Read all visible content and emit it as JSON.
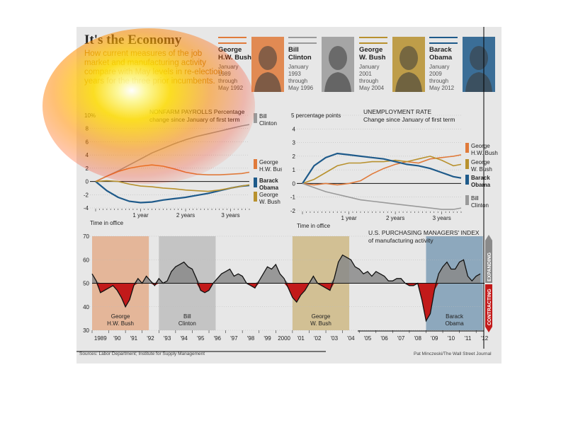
{
  "title": "It's the Economy",
  "subtitle": "How current measures of the job market and manufacturing activity compare with May levels in re-election years for the three prior incumbents.",
  "presidents": [
    {
      "name_line1": "George",
      "name_line2": "H.W. Bush",
      "period": [
        "January",
        "1989",
        "through",
        "May 1992"
      ],
      "color": "#e07a3a"
    },
    {
      "name_line1": "Bill",
      "name_line2": "Clinton",
      "period": [
        "January",
        "1993",
        "through",
        "May 1996"
      ],
      "color": "#9a9a9a"
    },
    {
      "name_line1": "George",
      "name_line2": "W. Bush",
      "period": [
        "January",
        "2001",
        "through",
        "May 2004"
      ],
      "color": "#b8912e"
    },
    {
      "name_line1": "Barack",
      "name_line2": "Obama",
      "period": [
        "January",
        "2009",
        "through",
        "May 2012"
      ],
      "color": "#1e5a8a"
    }
  ],
  "footer": {
    "source": "Sources: Labor Department; Institute for Supply Management",
    "credit": "Pat Minczeski/The Wall Street Journal"
  },
  "colors": {
    "hwbush": "#e07a3a",
    "clinton": "#9a9a9a",
    "wbush": "#b8912e",
    "obama": "#1e5a8a",
    "above50": "#8a8a8a",
    "below50": "#c21a1a"
  },
  "chart_data": [
    {
      "type": "line",
      "title": "NONFARM PAYROLLS Percentage change since January of first term",
      "y_unit_label": "10%",
      "xlabel": "Time in office",
      "x_tick_labels": [
        "1 year",
        "2 years",
        "3 years"
      ],
      "ylim": [
        -4,
        10
      ],
      "yticks": [
        -4,
        -2,
        0,
        2,
        4,
        6,
        8,
        10
      ],
      "x": [
        0,
        3,
        6,
        9,
        12,
        15,
        18,
        21,
        24,
        27,
        30,
        33,
        36,
        39,
        41
      ],
      "series": [
        {
          "name": "Bill Clinton",
          "key": "clinton",
          "values": [
            0,
            0.8,
            1.6,
            2.5,
            3.4,
            4.3,
            5.0,
            5.7,
            6.3,
            6.8,
            7.2,
            7.6,
            8.0,
            8.4,
            8.6
          ]
        },
        {
          "name": "George H.W. Bush",
          "key": "hwbush",
          "values": [
            0,
            0.8,
            1.5,
            2.0,
            2.3,
            2.5,
            2.3,
            1.9,
            1.4,
            1.1,
            1.0,
            1.0,
            1.1,
            1.2,
            1.4
          ]
        },
        {
          "name": "Barack Obama",
          "key": "obama",
          "values": [
            0,
            -1.4,
            -2.4,
            -3.0,
            -3.2,
            -3.1,
            -2.8,
            -2.6,
            -2.4,
            -2.1,
            -1.8,
            -1.4,
            -1.0,
            -0.7,
            -0.6
          ]
        },
        {
          "name": "George W. Bush",
          "key": "wbush",
          "values": [
            0,
            0.1,
            0.0,
            -0.4,
            -0.7,
            -0.8,
            -1.0,
            -1.1,
            -1.3,
            -1.4,
            -1.5,
            -1.3,
            -1.0,
            -0.7,
            -0.5
          ]
        }
      ]
    },
    {
      "type": "line",
      "title": "UNEMPLOYMENT RATE Change since January of first term",
      "y_unit_label": "5 percentage points",
      "xlabel": "Time in office",
      "x_tick_labels": [
        "1 year",
        "2 years",
        "3 years"
      ],
      "ylim": [
        -2,
        5
      ],
      "yticks": [
        -2,
        -1,
        0,
        1,
        2,
        3,
        4,
        5
      ],
      "x": [
        0,
        3,
        6,
        9,
        12,
        15,
        18,
        21,
        24,
        27,
        30,
        33,
        36,
        39,
        41
      ],
      "series": [
        {
          "name": "George H.W. Bush",
          "key": "hwbush",
          "values": [
            0,
            -0.1,
            0.0,
            -0.1,
            0.0,
            0.2,
            0.7,
            1.1,
            1.4,
            1.6,
            1.5,
            1.8,
            1.9,
            2.0,
            2.1
          ]
        },
        {
          "name": "George W. Bush",
          "key": "wbush",
          "values": [
            0,
            0.3,
            0.8,
            1.3,
            1.5,
            1.5,
            1.6,
            1.6,
            1.7,
            1.6,
            1.8,
            2.0,
            1.7,
            1.3,
            1.4
          ]
        },
        {
          "name": "Barack Obama",
          "key": "obama",
          "values": [
            0,
            1.3,
            1.9,
            2.2,
            2.1,
            2.0,
            1.9,
            1.8,
            1.6,
            1.4,
            1.3,
            1.1,
            0.8,
            0.5,
            0.4
          ]
        },
        {
          "name": "Bill Clinton",
          "key": "clinton",
          "values": [
            0,
            -0.3,
            -0.6,
            -0.8,
            -1.0,
            -1.2,
            -1.3,
            -1.4,
            -1.5,
            -1.6,
            -1.7,
            -1.8,
            -1.9,
            -1.9,
            -1.8
          ]
        }
      ]
    },
    {
      "type": "area",
      "title": "U.S. PURCHASING MANAGERS' INDEX of manufacturing activity",
      "ylim": [
        30,
        70
      ],
      "yticks": [
        30,
        40,
        50,
        60,
        70
      ],
      "baseline": 50,
      "x_tick_labels": [
        "1989",
        "'90",
        "'91",
        "'92",
        "'93",
        "'94",
        "'95",
        "'96",
        "'97",
        "'98",
        "'99",
        "2000",
        "'01",
        "'02",
        "'03",
        "'04",
        "'05",
        "'06",
        "'07",
        "'08",
        "'09",
        "'10",
        "'11",
        "'12"
      ],
      "side_labels": {
        "up": "EXPANDING",
        "down": "CONTRACTING"
      },
      "term_shading": [
        {
          "label1": "George",
          "label2": "H.W. Bush",
          "start": 1989.0,
          "end": 1992.4,
          "key": "hwbush"
        },
        {
          "label1": "Bill",
          "label2": "Clinton",
          "start": 1993.0,
          "end": 1996.4,
          "key": "clinton"
        },
        {
          "label1": "George",
          "label2": "W. Bush",
          "start": 2001.0,
          "end": 2004.4,
          "key": "wbush"
        },
        {
          "label1": "Barack",
          "label2": "Obama",
          "start": 2009.0,
          "end": 2012.4,
          "key": "obama"
        }
      ],
      "x": [
        1989.0,
        1989.25,
        1989.5,
        1989.75,
        1990.0,
        1990.25,
        1990.5,
        1990.75,
        1991.0,
        1991.25,
        1991.5,
        1991.75,
        1992.0,
        1992.25,
        1992.5,
        1992.75,
        1993.0,
        1993.25,
        1993.5,
        1993.75,
        1994.0,
        1994.25,
        1994.5,
        1994.75,
        1995.0,
        1995.25,
        1995.5,
        1995.75,
        1996.0,
        1996.25,
        1996.5,
        1996.75,
        1997.0,
        1997.25,
        1997.5,
        1997.75,
        1998.0,
        1998.25,
        1998.5,
        1998.75,
        1999.0,
        1999.25,
        1999.5,
        1999.75,
        2000.0,
        2000.25,
        2000.5,
        2000.75,
        2001.0,
        2001.25,
        2001.5,
        2001.75,
        2002.0,
        2002.25,
        2002.5,
        2002.75,
        2003.0,
        2003.25,
        2003.5,
        2003.75,
        2004.0,
        2004.25,
        2004.5,
        2004.75,
        2005.0,
        2005.25,
        2005.5,
        2005.75,
        2006.0,
        2006.25,
        2006.5,
        2006.75,
        2007.0,
        2007.25,
        2007.5,
        2007.75,
        2008.0,
        2008.25,
        2008.5,
        2008.75,
        2009.0,
        2009.25,
        2009.5,
        2009.75,
        2010.0,
        2010.25,
        2010.5,
        2010.75,
        2011.0,
        2011.25,
        2011.5,
        2011.75,
        2012.0,
        2012.25
      ],
      "values": [
        54,
        51,
        46,
        47,
        48,
        49,
        47,
        44,
        40,
        43,
        49,
        52,
        50,
        53,
        51,
        49,
        52,
        50,
        51,
        55,
        57,
        58,
        59,
        57,
        56,
        52,
        47,
        46,
        47,
        50,
        52,
        54,
        55,
        56,
        53,
        54,
        53,
        50,
        49,
        48,
        51,
        54,
        57,
        56,
        58,
        54,
        52,
        48,
        44,
        42,
        45,
        47,
        50,
        53,
        50,
        49,
        48,
        47,
        52,
        59,
        62,
        61,
        60,
        57,
        56,
        54,
        55,
        53,
        55,
        54,
        53,
        51,
        51,
        52,
        52,
        50,
        49,
        49,
        50,
        43,
        34,
        37,
        47,
        54,
        57,
        59,
        56,
        56,
        59,
        60,
        53,
        51,
        53,
        54
      ]
    }
  ]
}
